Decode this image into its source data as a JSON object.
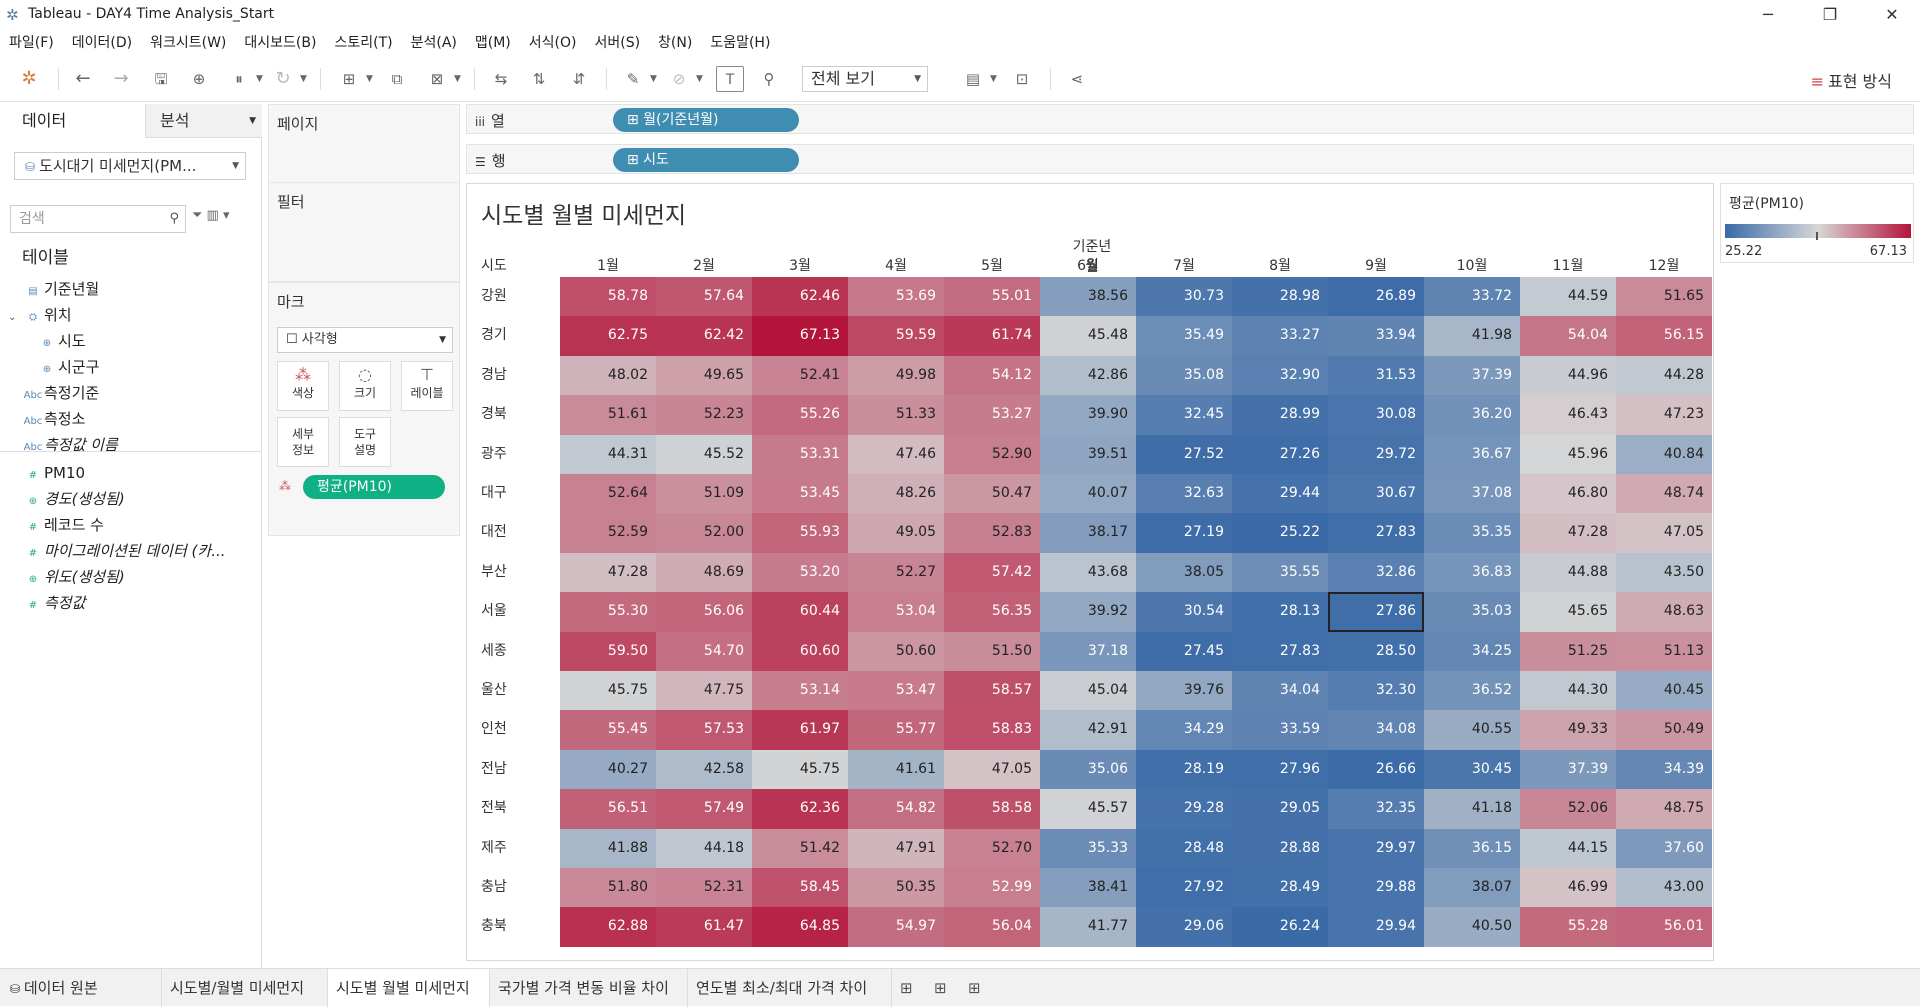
{
  "window": {
    "title": "Tableau - DAY4 Time Analysis_Start"
  },
  "menu": [
    "파일(F)",
    "데이터(D)",
    "워크시트(W)",
    "대시보드(B)",
    "스토리(T)",
    "분석(A)",
    "맵(M)",
    "서식(O)",
    "서버(S)",
    "창(N)",
    "도움말(H)"
  ],
  "toolbar": {
    "fit_label": "전체 보기",
    "show_me_label": "표현 방식"
  },
  "data_pane": {
    "tab_data": "데이터",
    "tab_analysis": "분석",
    "datasource": "도시대기 미세먼지(PM...",
    "search_placeholder": "검색",
    "tables_label": "테이블",
    "fields": [
      {
        "name": "기준년월",
        "icon": "calendar-icon",
        "kind": "dim",
        "indent": 0
      },
      {
        "name": "위치",
        "icon": "hierarchy-icon",
        "kind": "dim",
        "indent": 0,
        "expanded": true
      },
      {
        "name": "시도",
        "icon": "globe-icon",
        "kind": "dim",
        "indent": 1
      },
      {
        "name": "시군구",
        "icon": "globe-icon",
        "kind": "dim",
        "indent": 1
      },
      {
        "name": "측정기준",
        "icon": "abc-icon",
        "kind": "dim",
        "indent": 0
      },
      {
        "name": "측정소",
        "icon": "abc-icon",
        "kind": "dim",
        "indent": 0
      },
      {
        "name": "측정값 이름",
        "icon": "abc-icon",
        "kind": "dim",
        "indent": 0,
        "italic": true
      },
      {
        "name": "PM10",
        "icon": "hash-icon",
        "kind": "measure",
        "indent": 0
      },
      {
        "name": "경도(생성됨)",
        "icon": "globe-icon",
        "kind": "measure",
        "indent": 0,
        "italic": true
      },
      {
        "name": "레코드 수",
        "icon": "hash-icon",
        "kind": "measure",
        "indent": 0
      },
      {
        "name": "마이그레이션된 데이터 (카...",
        "icon": "hash-icon",
        "kind": "measure",
        "indent": 0,
        "italic": true
      },
      {
        "name": "위도(생성됨)",
        "icon": "globe-icon",
        "kind": "measure",
        "indent": 0,
        "italic": true
      },
      {
        "name": "측정값",
        "icon": "hash-icon",
        "kind": "measure",
        "indent": 0,
        "italic": true
      }
    ]
  },
  "shelves": {
    "pages": "페이지",
    "filters": "필터",
    "marks": "마크",
    "mark_type": "☐ 사각형",
    "mark_buttons": [
      "색상",
      "크기",
      "레이블",
      "세부\n정보",
      "도구\n설명"
    ],
    "mark_pill": "평균(PM10)",
    "columns_label": "열",
    "columns_pill": "⊞ 월(기준년월)",
    "rows_label": "행",
    "rows_pill": "⊞ 시도"
  },
  "legend": {
    "title": "평균(PM10)",
    "min": "25.22",
    "max": "67.13",
    "low_color": "#3a6aa7",
    "mid_color": "#d7d7d7",
    "high_color": "#b3143a"
  },
  "sheet_tabs": [
    "데이터 원본",
    "시도별/월별 미세먼지",
    "시도별 월별 미세먼지",
    "국가별 가격 변동 비율 차이",
    "연도별 최소/최대 가격 차이"
  ],
  "active_tab": 2,
  "chart_data": {
    "type": "heatmap",
    "title": "시도별 월별 미세먼지",
    "column_field": "기준년월",
    "row_field": "시도",
    "columns": [
      "1월",
      "2월",
      "3월",
      "4월",
      "5월",
      "6월",
      "7월",
      "8월",
      "9월",
      "10월",
      "11월",
      "12월"
    ],
    "rows": [
      "강원",
      "경기",
      "경남",
      "경북",
      "광주",
      "대구",
      "대전",
      "부산",
      "서울",
      "세종",
      "울산",
      "인천",
      "전남",
      "전북",
      "제주",
      "충남",
      "충북"
    ],
    "values": [
      [
        "58.78",
        "57.64",
        "62.46",
        "53.69",
        "55.01",
        "38.56",
        "30.73",
        "28.98",
        "26.89",
        "33.72",
        "44.59",
        "51.65"
      ],
      [
        "62.75",
        "62.42",
        "67.13",
        "59.59",
        "61.74",
        "45.48",
        "35.49",
        "33.27",
        "33.94",
        "41.98",
        "54.04",
        "56.15"
      ],
      [
        "48.02",
        "49.65",
        "52.41",
        "49.98",
        "54.12",
        "42.86",
        "35.08",
        "32.90",
        "31.53",
        "37.39",
        "44.96",
        "44.28"
      ],
      [
        "51.61",
        "52.23",
        "55.26",
        "51.33",
        "53.27",
        "39.90",
        "32.45",
        "28.99",
        "30.08",
        "36.20",
        "46.43",
        "47.23"
      ],
      [
        "44.31",
        "45.52",
        "53.31",
        "47.46",
        "52.90",
        "39.51",
        "27.52",
        "27.26",
        "29.72",
        "36.67",
        "45.96",
        "40.84"
      ],
      [
        "52.64",
        "51.09",
        "53.45",
        "48.26",
        "50.47",
        "40.07",
        "32.63",
        "29.44",
        "30.67",
        "37.08",
        "46.80",
        "48.74"
      ],
      [
        "52.59",
        "52.00",
        "55.93",
        "49.05",
        "52.83",
        "38.17",
        "27.19",
        "25.22",
        "27.83",
        "35.35",
        "47.28",
        "47.05"
      ],
      [
        "47.28",
        "48.69",
        "53.20",
        "52.27",
        "57.42",
        "43.68",
        "38.05",
        "35.55",
        "32.86",
        "36.83",
        "44.88",
        "43.50"
      ],
      [
        "55.30",
        "56.06",
        "60.44",
        "53.04",
        "56.35",
        "39.92",
        "30.54",
        "28.13",
        "27.86",
        "35.03",
        "45.65",
        "48.63"
      ],
      [
        "59.50",
        "54.70",
        "60.60",
        "50.60",
        "51.50",
        "37.18",
        "27.45",
        "27.83",
        "28.50",
        "34.25",
        "51.25",
        "51.13"
      ],
      [
        "45.75",
        "47.75",
        "53.14",
        "53.47",
        "58.57",
        "45.04",
        "39.76",
        "34.04",
        "32.30",
        "36.52",
        "44.30",
        "40.45"
      ],
      [
        "55.45",
        "57.53",
        "61.97",
        "55.77",
        "58.83",
        "42.91",
        "34.29",
        "33.59",
        "34.08",
        "40.55",
        "49.33",
        "50.49"
      ],
      [
        "40.27",
        "42.58",
        "45.75",
        "41.61",
        "47.05",
        "35.06",
        "28.19",
        "27.96",
        "26.66",
        "30.45",
        "37.39",
        "34.39"
      ],
      [
        "56.51",
        "57.49",
        "62.36",
        "54.82",
        "58.58",
        "45.57",
        "29.28",
        "29.05",
        "32.35",
        "41.18",
        "52.06",
        "48.75"
      ],
      [
        "41.88",
        "44.18",
        "51.42",
        "47.91",
        "52.70",
        "35.33",
        "28.48",
        "28.88",
        "29.97",
        "36.15",
        "44.15",
        "37.60"
      ],
      [
        "51.80",
        "52.31",
        "58.45",
        "50.35",
        "52.99",
        "38.41",
        "27.92",
        "28.49",
        "29.88",
        "38.07",
        "46.99",
        "43.00"
      ],
      [
        "62.88",
        "61.47",
        "64.85",
        "54.97",
        "56.04",
        "41.77",
        "29.06",
        "26.24",
        "29.94",
        "40.50",
        "55.28",
        "56.01"
      ]
    ],
    "color_range": [
      25.22,
      67.13
    ]
  }
}
